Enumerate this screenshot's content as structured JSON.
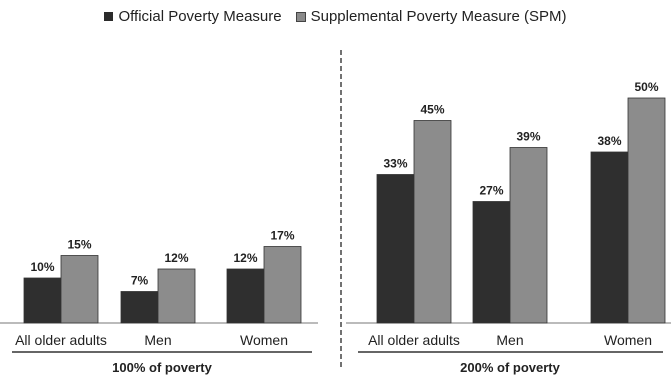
{
  "chart_data": {
    "type": "bar",
    "title": "",
    "legend": {
      "placement": "top-center",
      "entries": [
        "Official Poverty Measure",
        "Supplemental Poverty Measure (SPM)"
      ]
    },
    "series": [
      {
        "name": "Official Poverty Measure",
        "color": "#2f2f2f"
      },
      {
        "name": "Supplemental Poverty Measure (SPM)",
        "color": "#8c8c8c"
      }
    ],
    "ylim": [
      0,
      55
    ],
    "grid": false,
    "groups": [
      {
        "label": "100% of poverty",
        "categories": [
          "All older adults",
          "Men",
          "Women"
        ],
        "values": [
          [
            10,
            15
          ],
          [
            7,
            12
          ],
          [
            12,
            17
          ]
        ],
        "value_labels": [
          [
            "10%",
            "15%"
          ],
          [
            "7%",
            "12%"
          ],
          [
            "12%",
            "17%"
          ]
        ]
      },
      {
        "label": "200% of poverty",
        "categories": [
          "All older adults",
          "Men",
          "Women"
        ],
        "values": [
          [
            33,
            45
          ],
          [
            27,
            39
          ],
          [
            38,
            50
          ]
        ],
        "value_labels": [
          [
            "33%",
            "45%"
          ],
          [
            "27%",
            "39%"
          ],
          [
            "38%",
            "50%"
          ]
        ]
      }
    ]
  }
}
